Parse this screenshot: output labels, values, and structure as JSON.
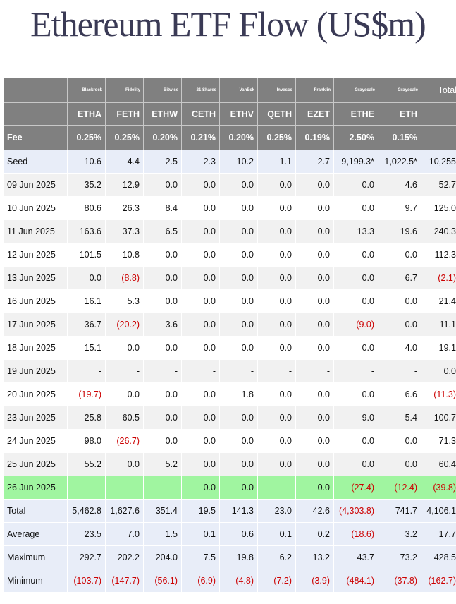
{
  "title": "Ethereum ETF Flow (US$m)",
  "colors": {
    "header_bg": "#808080",
    "highlight_row": "#a0f5a0",
    "negative": "#cc0000",
    "summary_bg": "#e8edf8"
  },
  "issuers": [
    "Blackrock",
    "Fidelity",
    "Bitwise",
    "21 Shares",
    "VanEck",
    "Invesco",
    "Franklin",
    "Grayscale",
    "Grayscale"
  ],
  "total_header": "Total",
  "tickers": [
    "ETHA",
    "FETH",
    "ETHW",
    "CETH",
    "ETHV",
    "QETH",
    "EZET",
    "ETHE",
    "ETH"
  ],
  "fee_label": "Fee",
  "fees": [
    "0.25%",
    "0.25%",
    "0.20%",
    "0.21%",
    "0.20%",
    "0.25%",
    "0.19%",
    "2.50%",
    "0.15%"
  ],
  "rows": [
    {
      "label": "Seed",
      "values": [
        "10.6",
        "4.4",
        "2.5",
        "2.3",
        "10.2",
        "1.1",
        "2.7",
        "9,199.3*",
        "1,022.5*",
        "10,255"
      ]
    },
    {
      "label": "09 Jun 2025",
      "values": [
        "35.2",
        "12.9",
        "0.0",
        "0.0",
        "0.0",
        "0.0",
        "0.0",
        "0.0",
        "4.6",
        "52.7"
      ]
    },
    {
      "label": "10 Jun 2025",
      "values": [
        "80.6",
        "26.3",
        "8.4",
        "0.0",
        "0.0",
        "0.0",
        "0.0",
        "0.0",
        "9.7",
        "125.0"
      ]
    },
    {
      "label": "11 Jun 2025",
      "values": [
        "163.6",
        "37.3",
        "6.5",
        "0.0",
        "0.0",
        "0.0",
        "0.0",
        "13.3",
        "19.6",
        "240.3"
      ]
    },
    {
      "label": "12 Jun 2025",
      "values": [
        "101.5",
        "10.8",
        "0.0",
        "0.0",
        "0.0",
        "0.0",
        "0.0",
        "0.0",
        "0.0",
        "112.3"
      ]
    },
    {
      "label": "13 Jun 2025",
      "values": [
        "0.0",
        "(8.8)",
        "0.0",
        "0.0",
        "0.0",
        "0.0",
        "0.0",
        "0.0",
        "6.7",
        "(2.1)"
      ]
    },
    {
      "label": "16 Jun 2025",
      "values": [
        "16.1",
        "5.3",
        "0.0",
        "0.0",
        "0.0",
        "0.0",
        "0.0",
        "0.0",
        "0.0",
        "21.4"
      ]
    },
    {
      "label": "17 Jun 2025",
      "values": [
        "36.7",
        "(20.2)",
        "3.6",
        "0.0",
        "0.0",
        "0.0",
        "0.0",
        "(9.0)",
        "0.0",
        "11.1"
      ]
    },
    {
      "label": "18 Jun 2025",
      "values": [
        "15.1",
        "0.0",
        "0.0",
        "0.0",
        "0.0",
        "0.0",
        "0.0",
        "0.0",
        "4.0",
        "19.1"
      ]
    },
    {
      "label": "19 Jun 2025",
      "values": [
        "-",
        "-",
        "-",
        "-",
        "-",
        "-",
        "-",
        "-",
        "-",
        "0.0"
      ]
    },
    {
      "label": "20 Jun 2025",
      "values": [
        "(19.7)",
        "0.0",
        "0.0",
        "0.0",
        "1.8",
        "0.0",
        "0.0",
        "0.0",
        "6.6",
        "(11.3)"
      ]
    },
    {
      "label": "23 Jun 2025",
      "values": [
        "25.8",
        "60.5",
        "0.0",
        "0.0",
        "0.0",
        "0.0",
        "0.0",
        "9.0",
        "5.4",
        "100.7"
      ]
    },
    {
      "label": "24 Jun 2025",
      "values": [
        "98.0",
        "(26.7)",
        "0.0",
        "0.0",
        "0.0",
        "0.0",
        "0.0",
        "0.0",
        "0.0",
        "71.3"
      ]
    },
    {
      "label": "25 Jun 2025",
      "values": [
        "55.2",
        "0.0",
        "5.2",
        "0.0",
        "0.0",
        "0.0",
        "0.0",
        "0.0",
        "0.0",
        "60.4"
      ]
    },
    {
      "label": "26 Jun 2025",
      "values": [
        "-",
        "-",
        "-",
        "0.0",
        "0.0",
        "-",
        "0.0",
        "(27.4)",
        "(12.4)",
        "(39.8)"
      ],
      "highlight": true
    }
  ],
  "summary": [
    {
      "label": "Total",
      "values": [
        "5,462.8",
        "1,627.6",
        "351.4",
        "19.5",
        "141.3",
        "23.0",
        "42.6",
        "(4,303.8)",
        "741.7",
        "4,106.1"
      ]
    },
    {
      "label": "Average",
      "values": [
        "23.5",
        "7.0",
        "1.5",
        "0.1",
        "0.6",
        "0.1",
        "0.2",
        "(18.6)",
        "3.2",
        "17.7"
      ]
    },
    {
      "label": "Maximum",
      "values": [
        "292.7",
        "202.2",
        "204.0",
        "7.5",
        "19.8",
        "6.2",
        "13.2",
        "43.7",
        "73.2",
        "428.5"
      ]
    },
    {
      "label": "Minimum",
      "values": [
        "(103.7)",
        "(147.7)",
        "(56.1)",
        "(6.9)",
        "(4.8)",
        "(7.2)",
        "(3.9)",
        "(484.1)",
        "(37.8)",
        "(162.7)"
      ]
    }
  ]
}
